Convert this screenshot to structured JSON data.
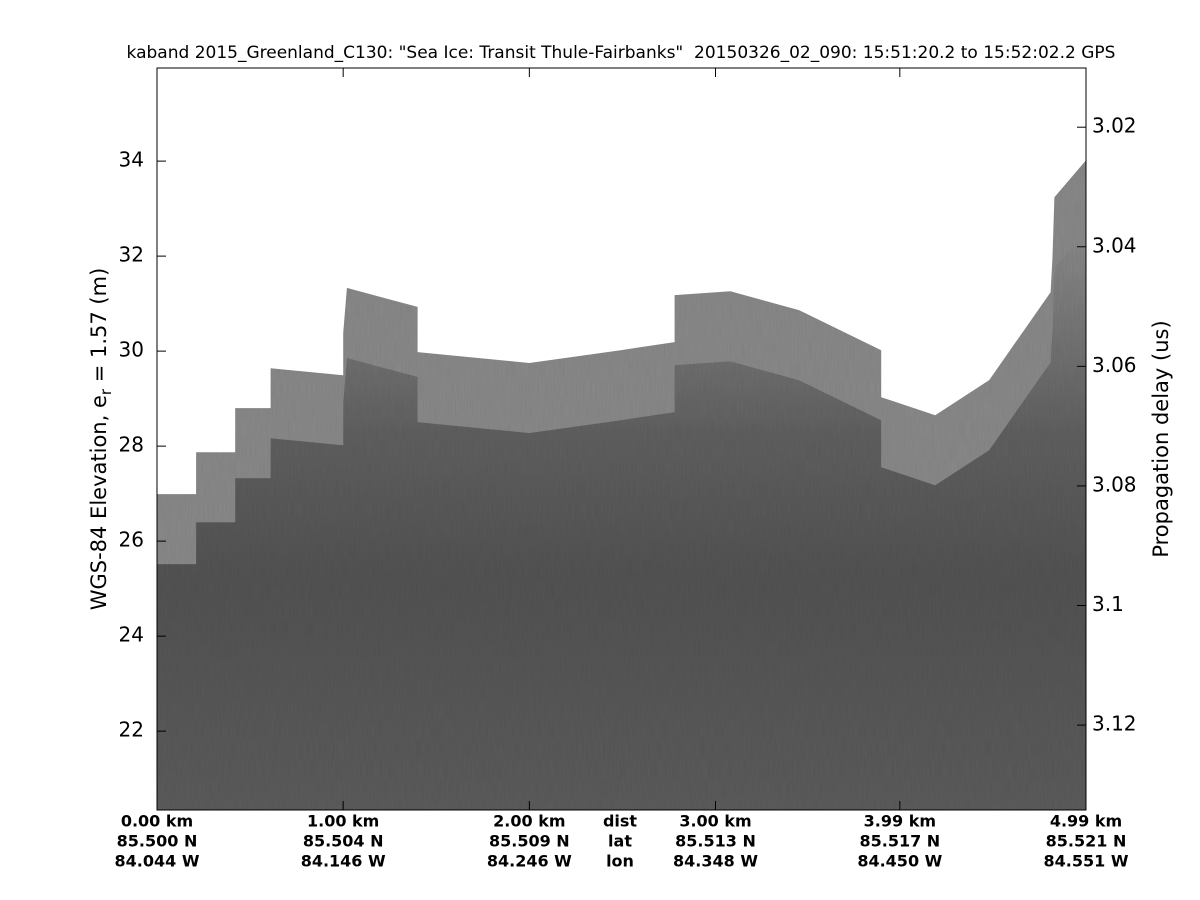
{
  "chart_data": {
    "type": "echogram",
    "title": "kaband 2015_Greenland_C130: \"Sea Ice: Transit Thule-Fairbanks\"  20150326_02_090: 15:51:20.2 to 15:52:02.2 GPS",
    "ylabel": "WGS-84 Elevation, e",
    "ylabel_subscript": "r",
    "ylabel_suffix": " = 1.57 (m)",
    "y2label": "Propagation delay (us)",
    "x": [
      0,
      0.21,
      0.21,
      0.42,
      0.42,
      0.61,
      0.61,
      1.0,
      1.0,
      1.02,
      1.4,
      1.4,
      2.0,
      2.49,
      2.78,
      2.78,
      3.08,
      3.45,
      3.89,
      3.89,
      4.18,
      4.47,
      4.8,
      4.81,
      4.82,
      4.99
    ],
    "values": [
      26.99,
      26.99,
      27.87,
      27.87,
      28.8,
      28.8,
      29.64,
      29.49,
      30.38,
      31.33,
      30.93,
      29.98,
      29.75,
      30.02,
      30.19,
      31.18,
      31.26,
      30.86,
      30.02,
      29.03,
      28.65,
      29.39,
      31.24,
      31.98,
      33.24,
      34.02
    ],
    "xlim": [
      0,
      4.99
    ],
    "ylim": [
      20.34,
      35.96
    ],
    "y2lim": [
      3.1342,
      3.0101
    ],
    "yticks": [
      22,
      24,
      26,
      28,
      30,
      32,
      34
    ],
    "y2ticks": [
      3.02,
      3.04,
      3.06,
      3.08,
      3.1,
      3.12
    ],
    "xticks": [
      {
        "value": 0,
        "label": "0.00 km"
      },
      {
        "value": 1,
        "label": "1.00 km"
      },
      {
        "value": 2,
        "label": "2.00 km"
      },
      {
        "value": 3,
        "label": "3.00 km"
      },
      {
        "value": 3.99,
        "label": "3.99 km"
      },
      {
        "value": 4.99,
        "label": "4.99 km"
      }
    ],
    "lat_labels": [
      "85.500 N",
      "85.504 N",
      "85.509 N",
      "85.513 N",
      "85.517 N",
      "85.521 N"
    ],
    "lon_labels": [
      "84.044 W",
      "84.146 W",
      "84.246 W",
      "84.348 W",
      "84.450 W",
      "84.551 W"
    ],
    "row_labels": [
      "dist",
      "lat",
      "lon"
    ],
    "color": "#8a8a8a"
  }
}
